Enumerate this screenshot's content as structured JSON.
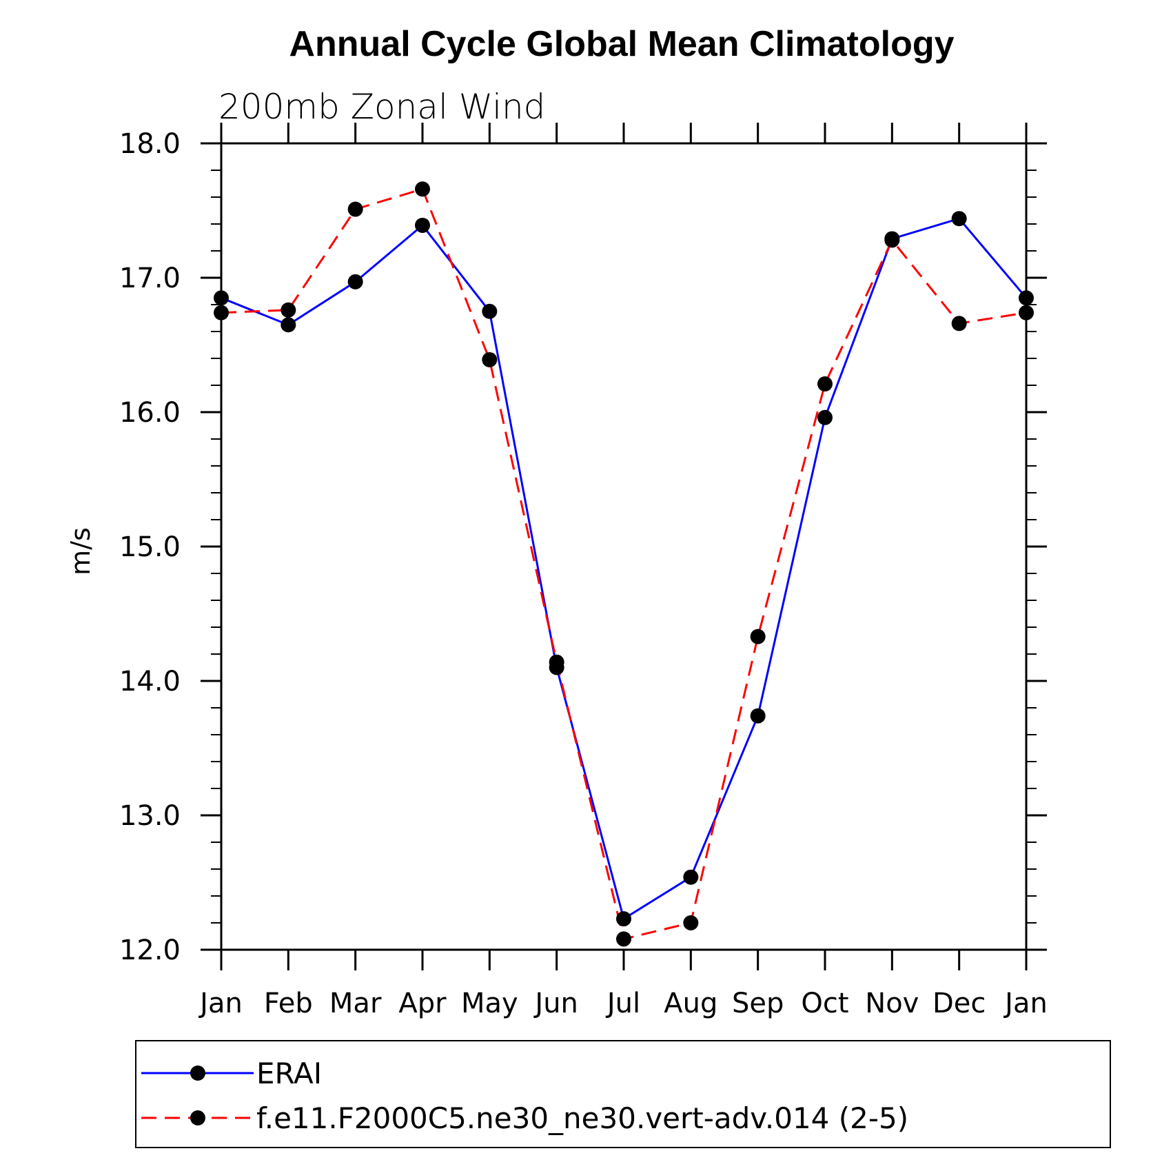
{
  "chart_data": {
    "type": "line",
    "title": "Annual Cycle Global Mean Climatology",
    "subtitle": "200mb Zonal Wind",
    "xlabel": "",
    "ylabel": "m/s",
    "categories": [
      "Jan",
      "Feb",
      "Mar",
      "Apr",
      "May",
      "Jun",
      "Jul",
      "Aug",
      "Sep",
      "Oct",
      "Nov",
      "Dec",
      "Jan"
    ],
    "yticks": [
      "12.0",
      "13.0",
      "14.0",
      "15.0",
      "16.0",
      "17.0",
      "18.0"
    ],
    "ylim": [
      12.0,
      18.0
    ],
    "grid": false,
    "legend_position": "bottom",
    "series": [
      {
        "name": "ERAI",
        "color": "#0000ff",
        "style": "solid",
        "marker": "circle",
        "values": [
          16.85,
          16.65,
          16.97,
          17.39,
          16.75,
          14.1,
          12.23,
          12.54,
          13.74,
          15.96,
          17.29,
          17.44,
          16.85
        ]
      },
      {
        "name": "f.e11.F2000C5.ne30_ne30.vert-adv.014 (2-5)",
        "color": "#ff0000",
        "style": "dashed",
        "marker": "circle",
        "values": [
          16.74,
          16.76,
          17.51,
          17.66,
          16.39,
          14.14,
          12.08,
          12.2,
          14.33,
          16.21,
          17.28,
          16.66,
          16.74
        ]
      }
    ]
  }
}
